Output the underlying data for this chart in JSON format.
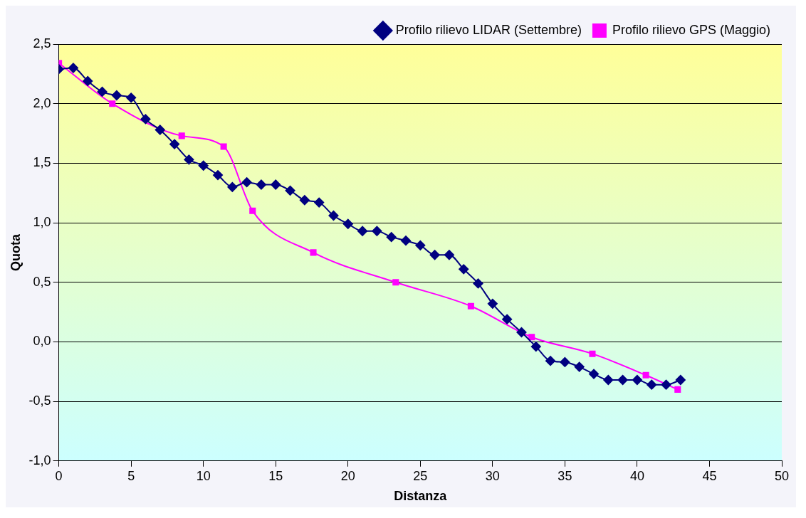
{
  "chart_data": {
    "type": "line",
    "xlabel": "Distanza",
    "ylabel": "Quota",
    "xlim": [
      0,
      50
    ],
    "xticks": [
      0,
      5,
      10,
      15,
      20,
      25,
      30,
      35,
      40,
      45,
      50
    ],
    "ylim": [
      -1,
      2.5
    ],
    "yticks": [
      {
        "value": -1,
        "label": "-1,0"
      },
      {
        "value": -0.5,
        "label": "-0,5"
      },
      {
        "value": 0,
        "label": "0,0"
      },
      {
        "value": 0.5,
        "label": "0,5"
      },
      {
        "value": 1,
        "label": "1,0"
      },
      {
        "value": 1.5,
        "label": "1,5"
      },
      {
        "value": 2,
        "label": "2,0"
      },
      {
        "value": 2.5,
        "label": "2,5"
      }
    ],
    "grid": "y",
    "legend": "top right",
    "series": [
      {
        "name": "Profilo rilievo LIDAR (Settembre)",
        "color": "#000080",
        "marker": "diamond",
        "x": [
          0,
          1,
          2,
          3,
          4,
          5,
          6,
          7,
          8,
          9,
          10,
          11,
          12,
          13,
          14,
          15,
          16,
          17,
          18,
          19,
          20,
          21,
          22,
          23,
          24,
          25,
          26,
          27,
          28,
          29,
          30,
          31,
          32,
          33,
          34,
          35,
          36,
          37,
          38,
          39,
          40,
          41,
          42,
          43
        ],
        "values": [
          2.29,
          2.3,
          2.19,
          2.1,
          2.07,
          2.05,
          1.87,
          1.78,
          1.66,
          1.53,
          1.48,
          1.4,
          1.3,
          1.34,
          1.32,
          1.32,
          1.27,
          1.19,
          1.17,
          1.06,
          0.99,
          0.93,
          0.93,
          0.88,
          0.85,
          0.81,
          0.73,
          0.73,
          0.61,
          0.49,
          0.32,
          0.19,
          0.08,
          -0.04,
          -0.16,
          -0.17,
          -0.21,
          -0.27,
          -0.32,
          -0.32,
          -0.32,
          -0.36,
          -0.36,
          -0.32
        ]
      },
      {
        "name": "Profilo rilievo GPS (Maggio)",
        "color": "#ff00ff",
        "marker": "square",
        "x": [
          0,
          3.7,
          8.5,
          11.4,
          13.4,
          17.6,
          23.3,
          28.5,
          32.7,
          36.9,
          40.6,
          42.8
        ],
        "values": [
          2.34,
          2.0,
          1.73,
          1.64,
          1.1,
          0.75,
          0.5,
          0.3,
          0.04,
          -0.1,
          -0.28,
          -0.4
        ]
      }
    ]
  }
}
